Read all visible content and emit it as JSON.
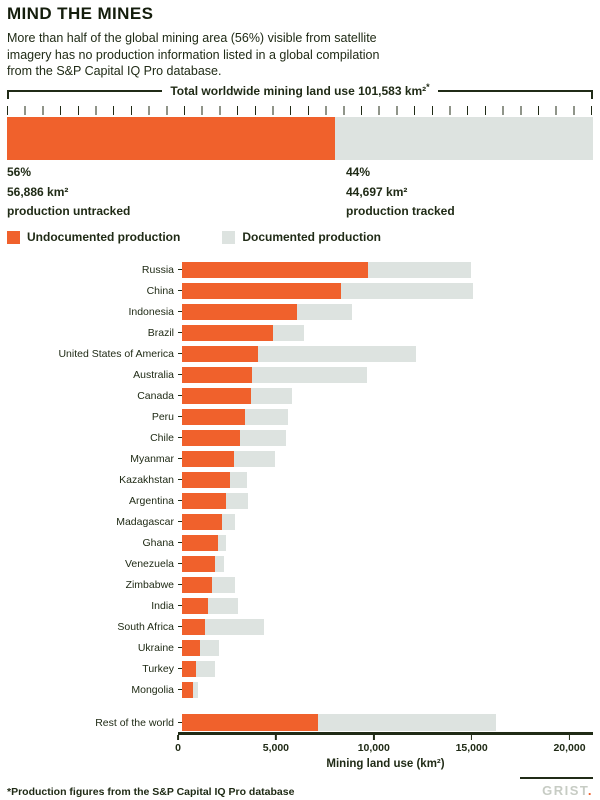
{
  "title": "MIND THE MINES",
  "intro": {
    "line1": "More than half of the global mining area (56%) visible from satellite",
    "line2": "imagery has no production information listed in a global compilation",
    "line3": "from the S&P Capital IQ Pro database."
  },
  "summary": {
    "bracket_label": "Total worldwide mining land use 101,583 km²",
    "footnote_marker": "*",
    "left": {
      "pct": "56%",
      "area": "56,886 km²",
      "desc": "production untracked",
      "share": 56
    },
    "right": {
      "pct": "44%",
      "area": "44,697 km²",
      "desc": "production tracked",
      "share": 44
    }
  },
  "legend": [
    {
      "label": "Undocumented production",
      "color": "#f0612c"
    },
    {
      "label": "Documented production",
      "color": "#dde3e0"
    }
  ],
  "colors": {
    "undocumented": "#f0612c",
    "documented": "#dde3e0",
    "ink": "#202b16"
  },
  "chart_data": [
    {
      "type": "bar",
      "orientation": "horizontal",
      "stacked": true,
      "title": "Total worldwide mining land use 101,583 km²",
      "unit": "km²",
      "categories": [
        "World"
      ],
      "series": [
        {
          "name": "Undocumented production",
          "values": [
            56886
          ],
          "share_pct": 56,
          "color": "#f0612c"
        },
        {
          "name": "Documented production",
          "values": [
            44697
          ],
          "share_pct": 44,
          "color": "#dde3e0"
        }
      ]
    },
    {
      "type": "bar",
      "orientation": "horizontal",
      "stacked": true,
      "grid": false,
      "legend_position": "top",
      "xlabel": "Mining land use (km²)",
      "xlim": [
        0,
        21200
      ],
      "xticks": [
        0,
        5000,
        10000,
        15000,
        20000
      ],
      "xtick_labels": [
        "0",
        "5,000",
        "10,000",
        "15,000",
        "20,000"
      ],
      "categories": [
        "Russia",
        "China",
        "Indonesia",
        "Brazil",
        "United States of America",
        "Australia",
        "Canada",
        "Peru",
        "Chile",
        "Myanmar",
        "Kazakhstan",
        "Argentina",
        "Madagascar",
        "Ghana",
        "Venezuela",
        "Zimbabwe",
        "India",
        "South Africa",
        "Ukraine",
        "Turkey",
        "Mongolia",
        "Rest of the world"
      ],
      "series": [
        {
          "name": "Undocumented production",
          "color": "#f0612c",
          "values": [
            9600,
            8200,
            5950,
            4700,
            3900,
            3600,
            3550,
            3250,
            3000,
            2700,
            2500,
            2250,
            2050,
            1850,
            1700,
            1550,
            1350,
            1200,
            950,
            700,
            550,
            7000
          ]
        },
        {
          "name": "Documented production",
          "color": "#dde3e0",
          "values": [
            5300,
            6800,
            2800,
            1600,
            8150,
            5950,
            2150,
            2200,
            2350,
            2100,
            850,
            1150,
            700,
            400,
            450,
            1200,
            1550,
            3050,
            950,
            1000,
            300,
            9200
          ]
        }
      ]
    }
  ],
  "footer": {
    "note": "*Production figures from the S&P Capital IQ Pro database",
    "logo": "GRIST",
    "logo_dot": "."
  }
}
